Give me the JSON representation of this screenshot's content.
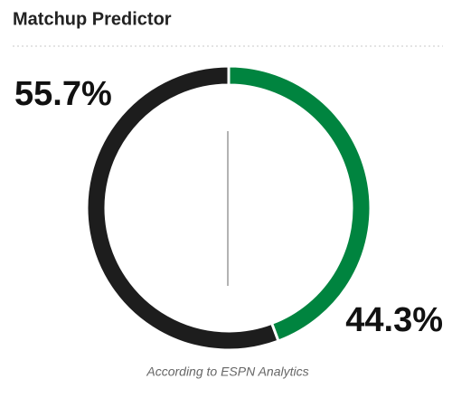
{
  "chart_data": {
    "type": "pie",
    "donut": true,
    "title": "Matchup Predictor",
    "values": [
      55.7,
      44.3
    ],
    "value_labels": [
      "55.7%",
      "44.3%"
    ],
    "colors": [
      "#1d1d1d",
      "#00843f"
    ],
    "footnote": "According to ESPN Analytics"
  }
}
